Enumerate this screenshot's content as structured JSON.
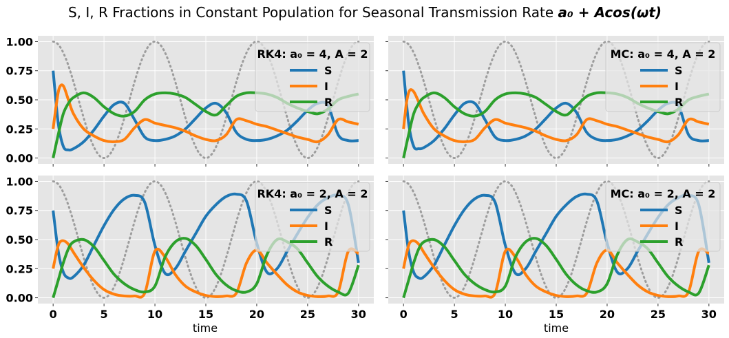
{
  "figure": {
    "title_text": "S, I, R Fractions in Constant Population for Seasonal Transmission Rate ",
    "title_math": "a₀ + Acos(ωt)",
    "xlabel": "time"
  },
  "colors": {
    "S": "#1f77b4",
    "I": "#ff7f0e",
    "R": "#2ca02c",
    "seasonal": "#999999",
    "panel_bg": "#e5e5e5",
    "grid": "#ffffff"
  },
  "chart_data": [
    {
      "type": "line",
      "legend_title": "RK4: a₀ = 4, A = 2",
      "legend_position": "top-right",
      "xlim": [
        -1.5,
        31.5
      ],
      "ylim": [
        -0.05,
        1.05
      ],
      "xticks": [
        "0",
        "5",
        "10",
        "15",
        "20",
        "25",
        "30"
      ],
      "yticks": [
        "0.00",
        "0.25",
        "0.50",
        "0.75",
        "1.00"
      ],
      "grid": true,
      "series": [
        {
          "name": "S",
          "x": [
            0,
            0.5,
            1,
            1.5,
            2,
            3,
            4,
            5,
            6,
            7,
            8,
            9,
            10,
            11,
            12,
            13,
            14,
            15,
            16,
            17,
            18,
            19,
            20,
            21,
            22,
            23,
            24,
            25,
            26,
            27,
            28,
            29,
            30
          ],
          "y": [
            0.75,
            0.3,
            0.1,
            0.07,
            0.08,
            0.14,
            0.24,
            0.36,
            0.46,
            0.47,
            0.33,
            0.18,
            0.15,
            0.16,
            0.19,
            0.25,
            0.34,
            0.43,
            0.47,
            0.39,
            0.22,
            0.16,
            0.15,
            0.16,
            0.19,
            0.24,
            0.32,
            0.41,
            0.47,
            0.45,
            0.2,
            0.15,
            0.15
          ]
        },
        {
          "name": "I",
          "x": [
            0,
            0.3,
            0.6,
            1,
            1.5,
            2,
            3,
            4,
            5,
            6,
            7,
            8,
            9,
            10,
            11,
            12,
            13,
            14,
            15,
            16,
            17,
            18,
            19,
            20,
            21,
            22,
            23,
            24,
            25,
            26,
            27,
            28,
            29,
            30
          ],
          "y": [
            0.25,
            0.45,
            0.6,
            0.62,
            0.5,
            0.38,
            0.25,
            0.19,
            0.15,
            0.14,
            0.16,
            0.26,
            0.33,
            0.3,
            0.28,
            0.26,
            0.23,
            0.19,
            0.16,
            0.15,
            0.2,
            0.33,
            0.32,
            0.29,
            0.27,
            0.24,
            0.21,
            0.18,
            0.16,
            0.14,
            0.2,
            0.33,
            0.31,
            0.29
          ]
        },
        {
          "name": "R",
          "x": [
            0,
            0.5,
            1,
            1.5,
            2,
            3,
            4,
            5,
            6,
            7,
            8,
            9,
            10,
            11,
            12,
            13,
            14,
            15,
            16,
            17,
            18,
            19,
            20,
            21,
            22,
            23,
            24,
            25,
            26,
            27,
            28,
            29,
            30
          ],
          "y": [
            0,
            0.2,
            0.38,
            0.47,
            0.52,
            0.56,
            0.52,
            0.44,
            0.38,
            0.36,
            0.4,
            0.5,
            0.55,
            0.56,
            0.55,
            0.52,
            0.46,
            0.4,
            0.37,
            0.45,
            0.53,
            0.56,
            0.56,
            0.55,
            0.52,
            0.47,
            0.43,
            0.4,
            0.38,
            0.42,
            0.5,
            0.53,
            0.55
          ]
        }
      ]
    },
    {
      "type": "line",
      "legend_title": "MC: a₀ = 4, A = 2",
      "legend_position": "top-right",
      "xlim": [
        -1.5,
        31.5
      ],
      "ylim": [
        -0.05,
        1.05
      ],
      "xticks": [
        "0",
        "5",
        "10",
        "15",
        "20",
        "25",
        "30"
      ],
      "yticks": [],
      "grid": true,
      "series": [
        {
          "name": "S",
          "x": [
            0,
            0.5,
            1,
            1.5,
            2,
            3,
            4,
            5,
            6,
            7,
            8,
            9,
            10,
            11,
            12,
            13,
            14,
            15,
            16,
            17,
            18,
            19,
            20,
            21,
            22,
            23,
            24,
            25,
            26,
            27,
            28,
            29,
            30
          ],
          "y": [
            0.75,
            0.3,
            0.1,
            0.08,
            0.09,
            0.15,
            0.25,
            0.37,
            0.47,
            0.47,
            0.33,
            0.18,
            0.15,
            0.16,
            0.19,
            0.25,
            0.34,
            0.43,
            0.47,
            0.39,
            0.22,
            0.16,
            0.15,
            0.16,
            0.19,
            0.24,
            0.32,
            0.41,
            0.47,
            0.45,
            0.2,
            0.15,
            0.15
          ]
        },
        {
          "name": "I",
          "x": [
            0,
            0.3,
            0.6,
            1,
            1.5,
            2,
            3,
            4,
            5,
            6,
            7,
            8,
            9,
            10,
            11,
            12,
            13,
            14,
            15,
            16,
            17,
            18,
            19,
            20,
            21,
            22,
            23,
            24,
            25,
            26,
            27,
            28,
            29,
            30
          ],
          "y": [
            0.25,
            0.48,
            0.58,
            0.57,
            0.48,
            0.38,
            0.25,
            0.19,
            0.15,
            0.14,
            0.16,
            0.26,
            0.33,
            0.3,
            0.28,
            0.26,
            0.23,
            0.19,
            0.16,
            0.15,
            0.2,
            0.33,
            0.32,
            0.29,
            0.27,
            0.24,
            0.21,
            0.18,
            0.16,
            0.14,
            0.2,
            0.33,
            0.31,
            0.29
          ]
        },
        {
          "name": "R",
          "x": [
            0,
            0.5,
            1,
            1.5,
            2,
            3,
            4,
            5,
            6,
            7,
            8,
            9,
            10,
            11,
            12,
            13,
            14,
            15,
            16,
            17,
            18,
            19,
            20,
            21,
            22,
            23,
            24,
            25,
            26,
            27,
            28,
            29,
            30
          ],
          "y": [
            0,
            0.2,
            0.38,
            0.47,
            0.52,
            0.56,
            0.52,
            0.44,
            0.38,
            0.36,
            0.4,
            0.5,
            0.55,
            0.56,
            0.55,
            0.52,
            0.46,
            0.4,
            0.37,
            0.45,
            0.53,
            0.56,
            0.56,
            0.55,
            0.52,
            0.47,
            0.43,
            0.4,
            0.38,
            0.42,
            0.5,
            0.53,
            0.55
          ]
        }
      ]
    },
    {
      "type": "line",
      "legend_title": "RK4: a₀ = 2, A = 2",
      "legend_position": "top-right",
      "xlim": [
        -1.5,
        31.5
      ],
      "ylim": [
        -0.05,
        1.05
      ],
      "xticks": [
        "0",
        "5",
        "10",
        "15",
        "20",
        "25",
        "30"
      ],
      "yticks": [
        "0.00",
        "0.25",
        "0.50",
        "0.75",
        "1.00"
      ],
      "grid": true,
      "series": [
        {
          "name": "S",
          "x": [
            0,
            0.5,
            1,
            1.5,
            2,
            3,
            4,
            5,
            6,
            7,
            8,
            9,
            10,
            11,
            12,
            13,
            14,
            15,
            16,
            17,
            18,
            19,
            20,
            21,
            22,
            23,
            24,
            25,
            26,
            27,
            28,
            29,
            30
          ],
          "y": [
            0.75,
            0.4,
            0.22,
            0.17,
            0.18,
            0.28,
            0.45,
            0.62,
            0.76,
            0.85,
            0.88,
            0.82,
            0.45,
            0.21,
            0.25,
            0.4,
            0.55,
            0.7,
            0.8,
            0.87,
            0.89,
            0.83,
            0.47,
            0.22,
            0.25,
            0.4,
            0.55,
            0.69,
            0.8,
            0.86,
            0.88,
            0.8,
            0.3
          ]
        },
        {
          "name": "I",
          "x": [
            0,
            0.3,
            0.6,
            1,
            1.5,
            2,
            3,
            4,
            5,
            6,
            7,
            8,
            9,
            10,
            11,
            12,
            13,
            14,
            15,
            16,
            17,
            18,
            19,
            20,
            21,
            22,
            23,
            24,
            25,
            26,
            27,
            28,
            29,
            30
          ],
          "y": [
            0.25,
            0.38,
            0.47,
            0.49,
            0.46,
            0.39,
            0.26,
            0.15,
            0.07,
            0.03,
            0.015,
            0.015,
            0.04,
            0.4,
            0.35,
            0.2,
            0.1,
            0.05,
            0.02,
            0.01,
            0.015,
            0.04,
            0.3,
            0.41,
            0.3,
            0.2,
            0.11,
            0.05,
            0.02,
            0.01,
            0.015,
            0.05,
            0.4,
            0.38
          ]
        },
        {
          "name": "R",
          "x": [
            0,
            0.5,
            1,
            1.5,
            2,
            3,
            4,
            5,
            6,
            7,
            8,
            9,
            10,
            11,
            12,
            13,
            14,
            15,
            16,
            17,
            18,
            19,
            20,
            21,
            22,
            23,
            24,
            25,
            26,
            27,
            28,
            29,
            30
          ],
          "y": [
            0,
            0.15,
            0.3,
            0.42,
            0.48,
            0.5,
            0.44,
            0.32,
            0.2,
            0.12,
            0.07,
            0.05,
            0.1,
            0.35,
            0.48,
            0.51,
            0.45,
            0.33,
            0.2,
            0.11,
            0.06,
            0.05,
            0.12,
            0.37,
            0.5,
            0.48,
            0.42,
            0.3,
            0.18,
            0.1,
            0.05,
            0.04,
            0.28
          ]
        }
      ]
    },
    {
      "type": "line",
      "legend_title": "MC: a₀ = 2, A = 2",
      "legend_position": "top-right",
      "xlim": [
        -1.5,
        31.5
      ],
      "ylim": [
        -0.05,
        1.05
      ],
      "xticks": [
        "0",
        "5",
        "10",
        "15",
        "20",
        "25",
        "30"
      ],
      "yticks": [],
      "grid": true,
      "series": [
        {
          "name": "S",
          "x": [
            0,
            0.5,
            1,
            1.5,
            2,
            3,
            4,
            5,
            6,
            7,
            8,
            9,
            10,
            11,
            12,
            13,
            14,
            15,
            16,
            17,
            18,
            19,
            20,
            21,
            22,
            23,
            24,
            25,
            26,
            27,
            28,
            29,
            30
          ],
          "y": [
            0.75,
            0.4,
            0.22,
            0.17,
            0.18,
            0.28,
            0.45,
            0.62,
            0.76,
            0.85,
            0.88,
            0.82,
            0.45,
            0.21,
            0.25,
            0.4,
            0.55,
            0.7,
            0.8,
            0.87,
            0.89,
            0.83,
            0.47,
            0.22,
            0.25,
            0.4,
            0.55,
            0.69,
            0.8,
            0.86,
            0.88,
            0.8,
            0.3
          ]
        },
        {
          "name": "I",
          "x": [
            0,
            0.3,
            0.6,
            1,
            1.5,
            2,
            3,
            4,
            5,
            6,
            7,
            8,
            9,
            10,
            11,
            12,
            13,
            14,
            15,
            16,
            17,
            18,
            19,
            20,
            21,
            22,
            23,
            24,
            25,
            26,
            27,
            28,
            29,
            30
          ],
          "y": [
            0.25,
            0.38,
            0.47,
            0.49,
            0.46,
            0.39,
            0.26,
            0.15,
            0.07,
            0.03,
            0.015,
            0.015,
            0.04,
            0.4,
            0.35,
            0.2,
            0.1,
            0.05,
            0.02,
            0.01,
            0.015,
            0.04,
            0.3,
            0.41,
            0.3,
            0.2,
            0.11,
            0.05,
            0.02,
            0.01,
            0.015,
            0.05,
            0.4,
            0.38
          ]
        },
        {
          "name": "R",
          "x": [
            0,
            0.5,
            1,
            1.5,
            2,
            3,
            4,
            5,
            6,
            7,
            8,
            9,
            10,
            11,
            12,
            13,
            14,
            15,
            16,
            17,
            18,
            19,
            20,
            21,
            22,
            23,
            24,
            25,
            26,
            27,
            28,
            29,
            30
          ],
          "y": [
            0,
            0.15,
            0.3,
            0.42,
            0.48,
            0.5,
            0.44,
            0.32,
            0.2,
            0.12,
            0.07,
            0.05,
            0.1,
            0.35,
            0.48,
            0.51,
            0.45,
            0.33,
            0.2,
            0.11,
            0.06,
            0.05,
            0.12,
            0.37,
            0.5,
            0.48,
            0.42,
            0.3,
            0.18,
            0.1,
            0.05,
            0.04,
            0.28
          ]
        }
      ]
    }
  ]
}
